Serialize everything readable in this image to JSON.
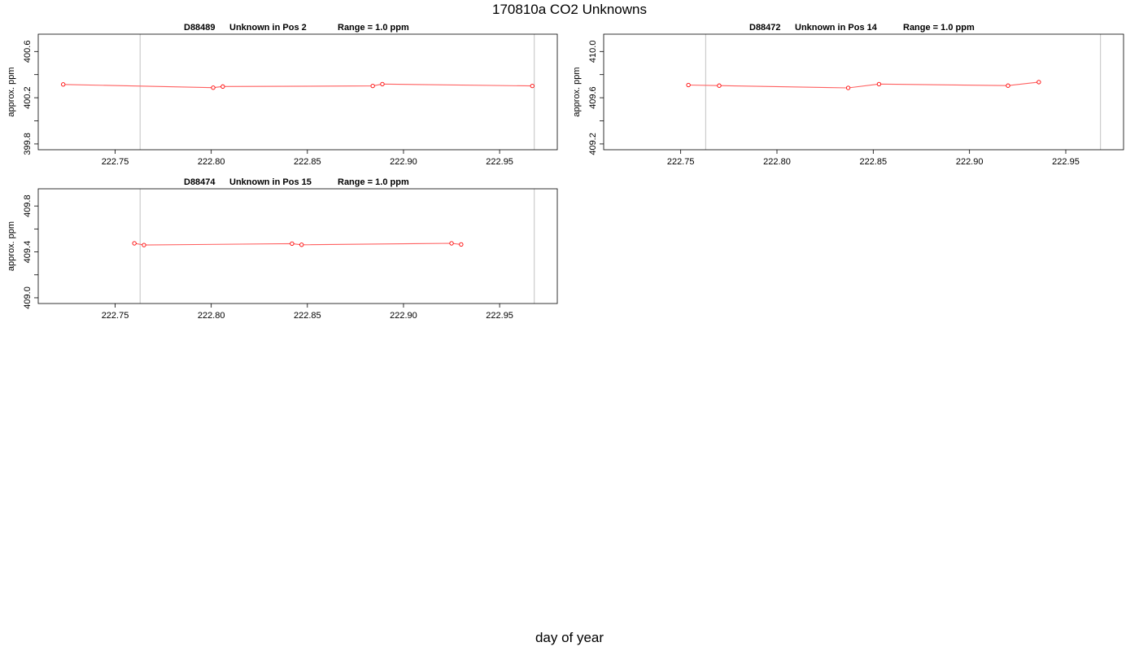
{
  "title": "170810a  CO2 Unknowns",
  "xlabel": "day of year",
  "colors": {
    "series": "#ff0000",
    "line": "#ff6060",
    "vline": "#cccccc",
    "frame": "#000000"
  },
  "chart_data": [
    {
      "type": "line",
      "id_label": "D88489",
      "position_label": "Unknown in Pos 2",
      "range_label": "Range = 1.0 ppm",
      "ylabel": "approx. ppm",
      "xlim": [
        222.71,
        222.98
      ],
      "ylim": [
        399.75,
        400.75
      ],
      "x_ticks": [
        "222.75",
        "222.80",
        "222.85",
        "222.90",
        "222.95"
      ],
      "y_ticks": [
        "399.8",
        "400.2",
        "400.6"
      ],
      "vlines": [
        222.763,
        222.968
      ],
      "x": [
        222.723,
        222.801,
        222.806,
        222.884,
        222.889,
        222.967
      ],
      "y": [
        400.315,
        400.287,
        400.297,
        400.302,
        400.318,
        400.302
      ]
    },
    {
      "type": "line",
      "id_label": "D88472",
      "position_label": "Unknown in Pos 14",
      "range_label": "Range = 1.0 ppm",
      "ylabel": "approx. ppm",
      "xlim": [
        222.71,
        222.98
      ],
      "ylim": [
        409.15,
        410.15
      ],
      "x_ticks": [
        "222.75",
        "222.80",
        "222.85",
        "222.90",
        "222.95"
      ],
      "y_ticks": [
        "409.2",
        "409.6",
        "410.0"
      ],
      "vlines": [
        222.763,
        222.968
      ],
      "x": [
        222.754,
        222.77,
        222.837,
        222.853,
        222.92,
        222.936
      ],
      "y": [
        409.71,
        409.705,
        409.685,
        409.718,
        409.705,
        409.735
      ]
    },
    {
      "type": "line",
      "id_label": "D88474",
      "position_label": "Unknown in Pos 15",
      "range_label": "Range = 1.0 ppm",
      "ylabel": "approx. ppm",
      "xlim": [
        222.71,
        222.98
      ],
      "ylim": [
        408.95,
        409.95
      ],
      "x_ticks": [
        "222.75",
        "222.80",
        "222.85",
        "222.90",
        "222.95"
      ],
      "y_ticks": [
        "409.0",
        "409.4",
        "409.8"
      ],
      "vlines": [
        222.763,
        222.968
      ],
      "x": [
        222.76,
        222.765,
        222.842,
        222.847,
        222.925,
        222.93
      ],
      "y": [
        409.475,
        409.46,
        409.472,
        409.462,
        409.475,
        409.465
      ]
    }
  ]
}
